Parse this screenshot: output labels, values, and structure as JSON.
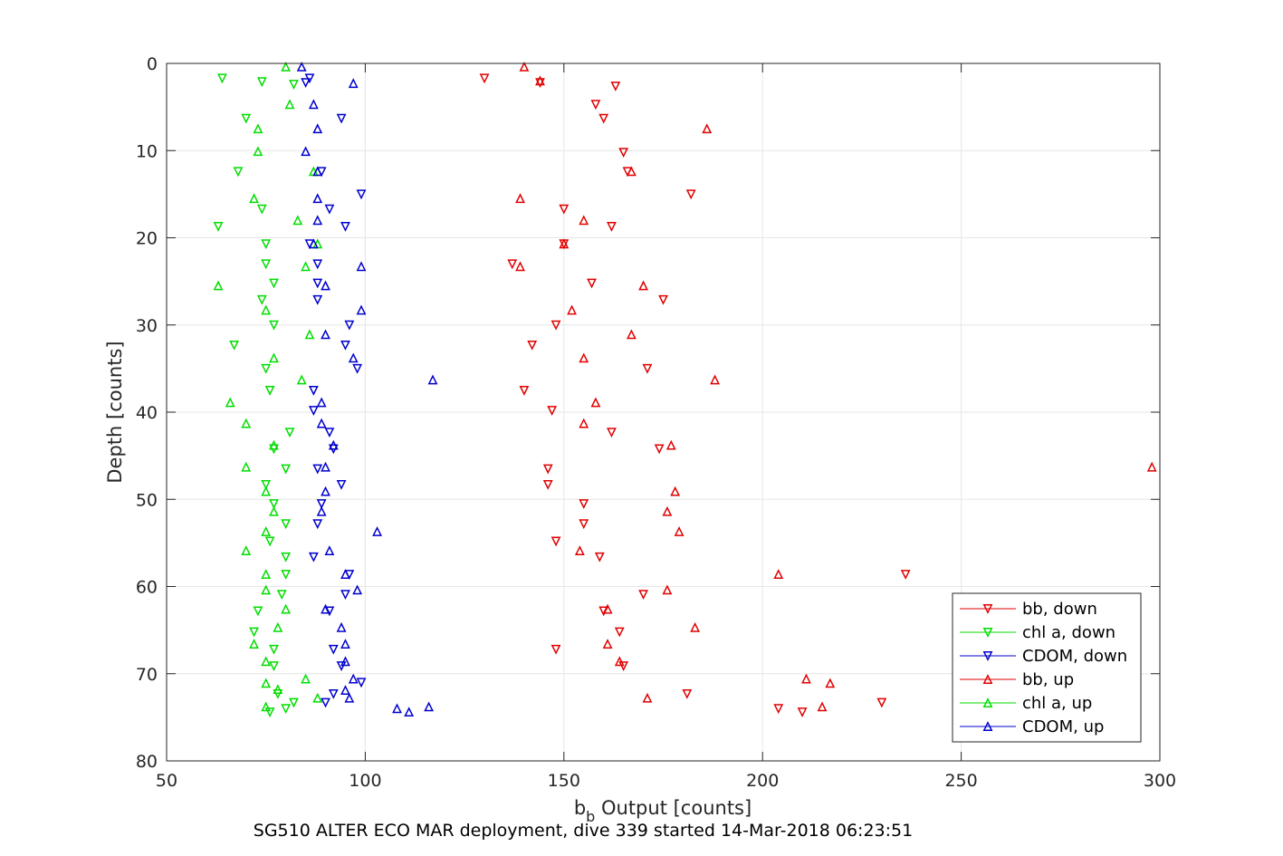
{
  "chart_data": {
    "type": "scatter",
    "title": "",
    "caption": "SG510 ALTER ECO MAR deployment, dive 339 started 14-Mar-2018 06:23:51",
    "xlabel_main": "b",
    "xlabel_sub": "b",
    "xlabel_rest": " Output [counts]",
    "ylabel": "Depth [counts]",
    "xlim": [
      50,
      300
    ],
    "ylim": [
      0,
      80
    ],
    "y_reversed": true,
    "grid": true,
    "x_ticks": [
      50,
      100,
      150,
      200,
      250,
      300
    ],
    "y_ticks": [
      0,
      10,
      20,
      30,
      40,
      50,
      60,
      70,
      80
    ],
    "legend_position": "bottom-right",
    "series": [
      {
        "name": "bb, down",
        "color": "#e00000",
        "marker": "triangle-down",
        "points": [
          [
            130,
            1.7
          ],
          [
            144,
            2.2
          ],
          [
            163,
            2.6
          ],
          [
            158,
            4.7
          ],
          [
            160,
            6.3
          ],
          [
            165,
            10.2
          ],
          [
            166,
            12.4
          ],
          [
            182,
            15.0
          ],
          [
            150,
            16.7
          ],
          [
            162,
            18.7
          ],
          [
            150,
            20.7
          ],
          [
            137,
            23.0
          ],
          [
            157,
            25.2
          ],
          [
            175,
            27.1
          ],
          [
            148,
            30.0
          ],
          [
            142,
            32.3
          ],
          [
            171,
            35.0
          ],
          [
            140,
            37.5
          ],
          [
            147,
            39.8
          ],
          [
            162,
            42.3
          ],
          [
            174,
            44.2
          ],
          [
            146,
            46.5
          ],
          [
            146,
            48.3
          ],
          [
            155,
            50.5
          ],
          [
            155,
            52.8
          ],
          [
            148,
            54.8
          ],
          [
            159,
            56.6
          ],
          [
            236,
            58.6
          ],
          [
            170,
            60.9
          ],
          [
            160,
            62.8
          ],
          [
            164,
            65.2
          ],
          [
            148,
            67.2
          ],
          [
            165,
            69.1
          ],
          [
            181,
            72.3
          ],
          [
            230,
            73.3
          ],
          [
            204,
            74.0
          ],
          [
            210,
            74.4
          ]
        ]
      },
      {
        "name": "chl a, down",
        "color": "#00dd00",
        "marker": "triangle-down",
        "points": [
          [
            64,
            1.7
          ],
          [
            74,
            2.1
          ],
          [
            82,
            2.4
          ],
          [
            70,
            6.3
          ],
          [
            68,
            12.4
          ],
          [
            74,
            16.7
          ],
          [
            63,
            18.7
          ],
          [
            75,
            20.7
          ],
          [
            75,
            23.0
          ],
          [
            77,
            25.2
          ],
          [
            74,
            27.1
          ],
          [
            77,
            30.0
          ],
          [
            67,
            32.3
          ],
          [
            75,
            35.0
          ],
          [
            76,
            37.5
          ],
          [
            81,
            42.3
          ],
          [
            77,
            44.2
          ],
          [
            80,
            46.5
          ],
          [
            75,
            48.3
          ],
          [
            77,
            50.5
          ],
          [
            80,
            52.8
          ],
          [
            76,
            54.8
          ],
          [
            80,
            56.6
          ],
          [
            80,
            58.6
          ],
          [
            79,
            60.9
          ],
          [
            73,
            62.8
          ],
          [
            72,
            65.2
          ],
          [
            77,
            67.2
          ],
          [
            77,
            69.1
          ],
          [
            78,
            72.3
          ],
          [
            82,
            73.3
          ],
          [
            80,
            74.0
          ],
          [
            76,
            74.4
          ]
        ]
      },
      {
        "name": "CDOM, down",
        "color": "#0000cc",
        "marker": "triangle-down",
        "points": [
          [
            86,
            1.7
          ],
          [
            85,
            2.2
          ],
          [
            94,
            6.3
          ],
          [
            89,
            12.4
          ],
          [
            99,
            15.0
          ],
          [
            91,
            16.7
          ],
          [
            95,
            18.7
          ],
          [
            86,
            20.7
          ],
          [
            88,
            23.0
          ],
          [
            88,
            25.2
          ],
          [
            88,
            27.1
          ],
          [
            96,
            30.0
          ],
          [
            95,
            32.3
          ],
          [
            98,
            35.0
          ],
          [
            87,
            37.5
          ],
          [
            87,
            39.8
          ],
          [
            91,
            42.3
          ],
          [
            92,
            44.2
          ],
          [
            88,
            46.5
          ],
          [
            94,
            48.3
          ],
          [
            89,
            50.5
          ],
          [
            88,
            52.8
          ],
          [
            87,
            56.6
          ],
          [
            96,
            58.6
          ],
          [
            95,
            60.9
          ],
          [
            91,
            62.8
          ],
          [
            92,
            67.2
          ],
          [
            94,
            69.1
          ],
          [
            99,
            71.0
          ],
          [
            92,
            72.3
          ],
          [
            90,
            73.3
          ]
        ]
      },
      {
        "name": "bb, up",
        "color": "#e00000",
        "marker": "triangle-up",
        "points": [
          [
            140,
            0.4
          ],
          [
            144,
            2.0
          ],
          [
            186,
            7.5
          ],
          [
            167,
            12.4
          ],
          [
            139,
            15.5
          ],
          [
            155,
            18.0
          ],
          [
            150,
            20.7
          ],
          [
            139,
            23.3
          ],
          [
            170,
            25.5
          ],
          [
            152,
            28.3
          ],
          [
            167,
            31.1
          ],
          [
            155,
            33.8
          ],
          [
            188,
            36.3
          ],
          [
            158,
            38.9
          ],
          [
            155,
            41.3
          ],
          [
            177,
            43.8
          ],
          [
            298,
            46.3
          ],
          [
            178,
            49.1
          ],
          [
            176,
            51.4
          ],
          [
            179,
            53.7
          ],
          [
            154,
            55.9
          ],
          [
            204,
            58.6
          ],
          [
            176,
            60.4
          ],
          [
            161,
            62.6
          ],
          [
            183,
            64.7
          ],
          [
            161,
            66.6
          ],
          [
            164,
            68.6
          ],
          [
            211,
            70.6
          ],
          [
            217,
            71.1
          ],
          [
            171,
            72.8
          ],
          [
            215,
            73.8
          ]
        ]
      },
      {
        "name": "chl a, up",
        "color": "#00dd00",
        "marker": "triangle-up",
        "points": [
          [
            80,
            0.4
          ],
          [
            81,
            4.7
          ],
          [
            73,
            7.5
          ],
          [
            73,
            10.1
          ],
          [
            87,
            12.4
          ],
          [
            72,
            15.5
          ],
          [
            83,
            18.0
          ],
          [
            88,
            20.7
          ],
          [
            85,
            23.3
          ],
          [
            63,
            25.5
          ],
          [
            75,
            28.3
          ],
          [
            86,
            31.1
          ],
          [
            77,
            33.8
          ],
          [
            84,
            36.3
          ],
          [
            66,
            38.9
          ],
          [
            70,
            41.3
          ],
          [
            77,
            43.8
          ],
          [
            70,
            46.3
          ],
          [
            75,
            49.1
          ],
          [
            77,
            51.4
          ],
          [
            75,
            53.7
          ],
          [
            70,
            55.9
          ],
          [
            75,
            58.6
          ],
          [
            75,
            60.4
          ],
          [
            80,
            62.6
          ],
          [
            78,
            64.7
          ],
          [
            72,
            66.6
          ],
          [
            75,
            68.6
          ],
          [
            85,
            70.6
          ],
          [
            75,
            71.1
          ],
          [
            78,
            71.8
          ],
          [
            88,
            72.8
          ],
          [
            75,
            73.8
          ]
        ]
      },
      {
        "name": "CDOM, up",
        "color": "#0000cc",
        "marker": "triangle-up",
        "points": [
          [
            84,
            0.4
          ],
          [
            97,
            2.3
          ],
          [
            87,
            4.7
          ],
          [
            88,
            7.5
          ],
          [
            85,
            10.1
          ],
          [
            88,
            12.4
          ],
          [
            88,
            15.5
          ],
          [
            88,
            18.0
          ],
          [
            87,
            20.7
          ],
          [
            99,
            23.3
          ],
          [
            90,
            25.5
          ],
          [
            99,
            28.3
          ],
          [
            90,
            31.1
          ],
          [
            97,
            33.8
          ],
          [
            117,
            36.3
          ],
          [
            89,
            38.9
          ],
          [
            89,
            41.3
          ],
          [
            92,
            43.8
          ],
          [
            90,
            46.3
          ],
          [
            90,
            49.1
          ],
          [
            89,
            51.4
          ],
          [
            103,
            53.7
          ],
          [
            91,
            55.9
          ],
          [
            95,
            58.6
          ],
          [
            98,
            60.4
          ],
          [
            90,
            62.6
          ],
          [
            94,
            64.7
          ],
          [
            95,
            66.6
          ],
          [
            95,
            68.6
          ],
          [
            97,
            70.6
          ],
          [
            95,
            71.9
          ],
          [
            96,
            72.8
          ],
          [
            108,
            74.0
          ],
          [
            111,
            74.4
          ],
          [
            116,
            73.8
          ]
        ]
      }
    ]
  }
}
